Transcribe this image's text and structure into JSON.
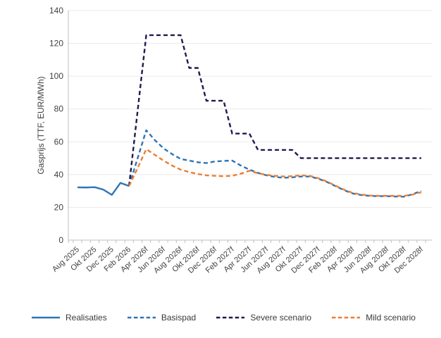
{
  "chart_data": {
    "type": "line",
    "title": "",
    "xlabel": "",
    "ylabel": "Gasprijs (TTF, EUR/MWh)",
    "ylim": [
      0,
      140
    ],
    "ytick_step": 20,
    "grid": "horizontal",
    "legend_position": "bottom",
    "n_points": 41,
    "x_labels_every": 2,
    "x_labels": [
      "Aug 2025",
      "Okt 2025",
      "Dec 2025",
      "Feb 2026",
      "Apr 2026f",
      "Jun 2026f",
      "Aug 2026f",
      "Okt 2026f",
      "Dec 2026f",
      "Feb 2027f",
      "Apr 2027f",
      "Jun 2027f",
      "Aug 2027f",
      "Okt 2027f",
      "Dec 2027f",
      "Feb 2028f",
      "Apr 2028f",
      "Jun 2028f",
      "Aug 2028f",
      "Okt 2028f",
      "Dec 2028f"
    ],
    "colors": {
      "axis": "#BFBFBF",
      "gridline": "#E9E9E9",
      "tick_text": "#404040"
    },
    "series": [
      {
        "name": "Realisaties",
        "color": "#2E74B5",
        "dash": "solid",
        "values": [
          32.2,
          32.1,
          32.3,
          30.8,
          27.6,
          34.9,
          33,
          null,
          null,
          null,
          null,
          null,
          null,
          null,
          null,
          null,
          null,
          null,
          null,
          null,
          null,
          null,
          null,
          null,
          null,
          null,
          null,
          null,
          null,
          null,
          null,
          null,
          null,
          null,
          null,
          null,
          null,
          null,
          null,
          null,
          null
        ]
      },
      {
        "name": "Basispad",
        "color": "#2E74B5",
        "dash": "dashed",
        "values": [
          null,
          null,
          null,
          null,
          null,
          null,
          33,
          50,
          67,
          61,
          56,
          52.5,
          49.5,
          48.5,
          47.5,
          47,
          48,
          48.3,
          48.5,
          45.5,
          43,
          41,
          39.5,
          38.5,
          38,
          38.3,
          38.8,
          38.8,
          37.5,
          35.5,
          33,
          30.5,
          28.5,
          27.5,
          27,
          26.8,
          26.8,
          26.6,
          26.5,
          28,
          30
        ]
      },
      {
        "name": "Severe scenario",
        "color": "#1F1B4E",
        "dash": "dashed",
        "values": [
          null,
          null,
          null,
          null,
          null,
          null,
          33,
          79,
          125,
          125,
          125,
          125,
          125,
          105,
          105,
          85,
          85,
          85,
          65,
          65,
          65,
          55,
          55,
          55,
          55,
          55,
          50,
          50,
          50,
          50,
          50,
          50,
          50,
          50,
          50,
          50,
          50,
          50,
          50,
          50,
          50
        ]
      },
      {
        "name": "Mild scenario",
        "color": "#ED7D31",
        "dash": "dashed",
        "values": [
          null,
          null,
          null,
          null,
          null,
          null,
          33,
          44,
          55.5,
          52,
          48.5,
          45.5,
          43,
          41.5,
          40.3,
          39.5,
          39.2,
          39,
          39.2,
          40.5,
          42.3,
          40.8,
          39.8,
          39.2,
          38.8,
          39,
          39.5,
          39.2,
          37.8,
          35.8,
          33.2,
          30.8,
          28.8,
          27.8,
          27.2,
          27,
          27,
          27,
          27,
          27.8,
          29.2
        ]
      }
    ]
  },
  "legend": {
    "items": [
      "Realisaties",
      "Basispad",
      "Severe scenario",
      "Mild scenario"
    ]
  }
}
